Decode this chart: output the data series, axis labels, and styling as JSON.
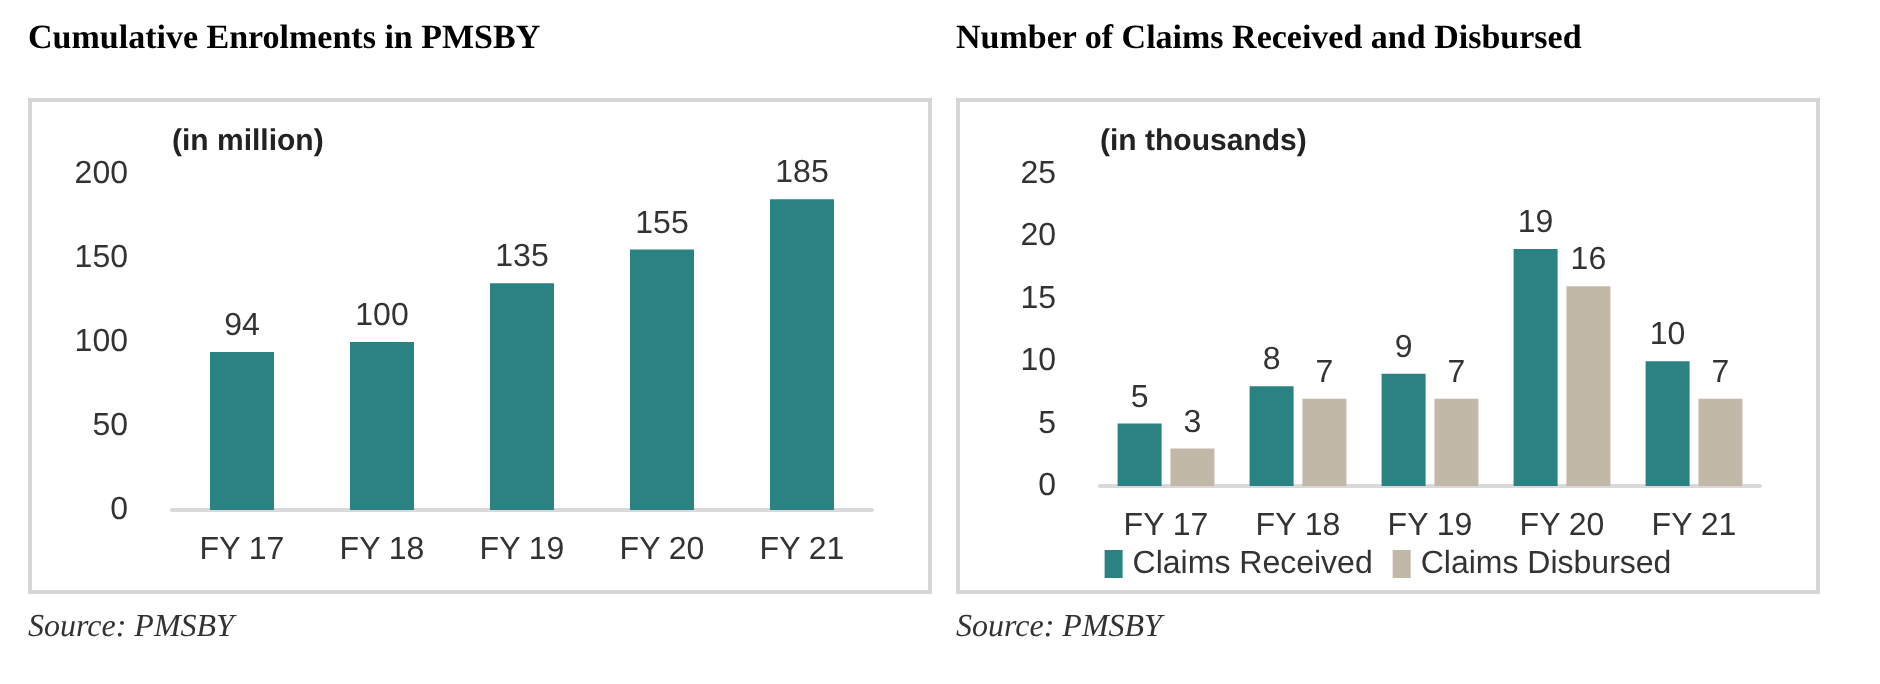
{
  "chart_data": [
    {
      "type": "bar",
      "title": "Cumulative Enrolments in PMSBY",
      "categories": [
        "FY 17",
        "FY 18",
        "FY 19",
        "FY 20",
        "FY 21"
      ],
      "values": [
        94,
        100,
        135,
        155,
        185
      ],
      "color": "#2a8283",
      "ylim": [
        0,
        200
      ],
      "yticks": [
        0,
        50,
        100,
        150,
        200
      ],
      "data_labels": true,
      "grid": false,
      "annotations": [
        "(in million)",
        "Source: PMSBY"
      ]
    },
    {
      "type": "bar",
      "title": "Number of Claims Received and Disbursed",
      "categories": [
        "FY 17",
        "FY 18",
        "FY 19",
        "FY 20",
        "FY 21"
      ],
      "series": [
        {
          "name": "Claims Received",
          "color": "#2a8283",
          "values": [
            5,
            8,
            9,
            19,
            10
          ]
        },
        {
          "name": "Claims Disbursed",
          "color": "#c2b8a8",
          "values": [
            3,
            7,
            7,
            16,
            7
          ]
        }
      ],
      "ylim": [
        0,
        25
      ],
      "yticks": [
        0,
        5,
        10,
        15,
        20,
        25
      ],
      "data_labels": true,
      "grid": false,
      "legend": "bottom",
      "annotations": [
        "(in thousands)",
        "Source: PMSBY"
      ]
    }
  ]
}
